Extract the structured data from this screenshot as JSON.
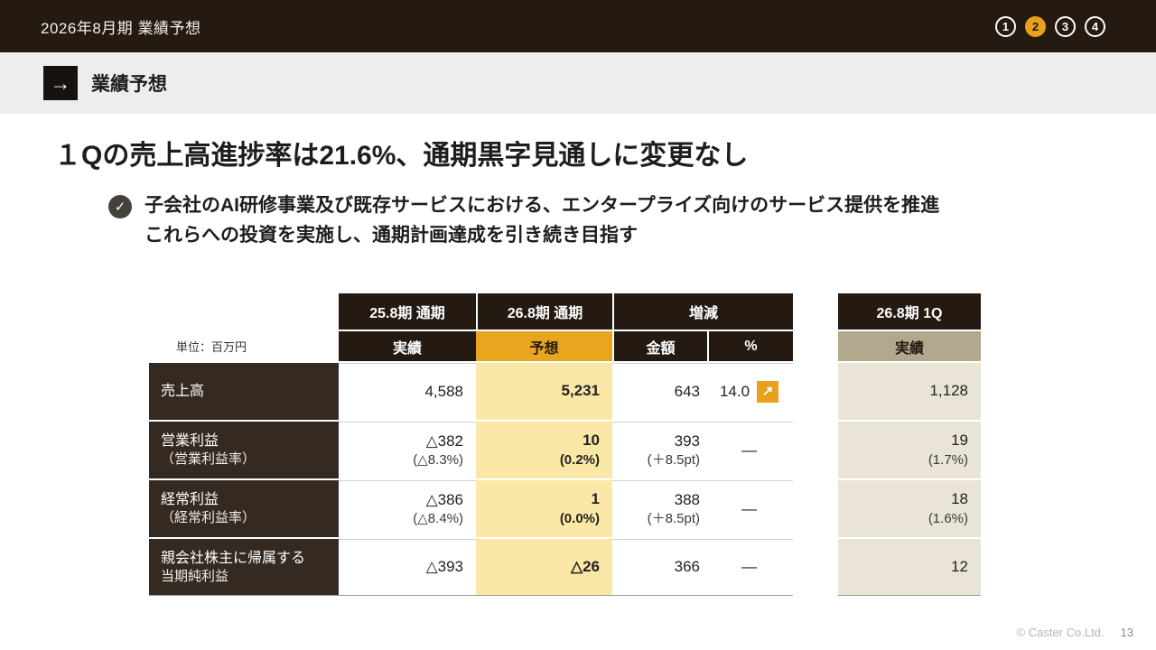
{
  "colors": {
    "bar_bg": "#241A12",
    "accent": "#E8A11B",
    "forecast_header_bg": "#E8A51E",
    "forecast_cell_bg": "#FBE8A6",
    "q1_header_bg": "#B2A88D",
    "q1_cell_bg": "#E9E4D6"
  },
  "topbar": {
    "title": "2026年8月期 業績予想",
    "pager": [
      {
        "label": "1",
        "active": false
      },
      {
        "label": "2",
        "active": true
      },
      {
        "label": "3",
        "active": false
      },
      {
        "label": "4",
        "active": false
      }
    ]
  },
  "section": {
    "title": "業績予想",
    "arrow": "→"
  },
  "headline": "１Qの売上高進捗率は21.6%、通期黒字見通しに変更なし",
  "bullet": {
    "check": "✓",
    "line1": "子会社のAI研修事業及び既存サービスにおける、エンタープライズ向けのサービス提供を推進",
    "line2": "これらへの投資を実施し、通期計画達成を引き続き目指す"
  },
  "table": {
    "unit": "単位：百万円",
    "groups": [
      "25.8期 通期",
      "26.8期 通期",
      "増減"
    ],
    "q1_group": "26.8期 1Q",
    "sub_headers": [
      "実績",
      "予想",
      "金額",
      "%"
    ],
    "q1_sub": "実績",
    "up_arrow": "↗",
    "rows": [
      {
        "label": "売上高",
        "label_sub": "",
        "actual": "4,588",
        "actual_sub": "",
        "forecast": "5,231",
        "forecast_sub": "",
        "amount": "643",
        "amount_sub": "",
        "pct": "14.0",
        "q1": "1,128",
        "q1_sub": ""
      },
      {
        "label": "営業利益",
        "label_sub": "（営業利益率）",
        "actual": "△382",
        "actual_sub": "(△8.3%)",
        "forecast": "10",
        "forecast_sub": "(0.2%)",
        "amount": "393",
        "amount_sub": "(＋8.5pt)",
        "pct": "—",
        "q1": "19",
        "q1_sub": "(1.7%)"
      },
      {
        "label": "経常利益",
        "label_sub": "（経常利益率）",
        "actual": "△386",
        "actual_sub": "(△8.4%)",
        "forecast": "1",
        "forecast_sub": "(0.0%)",
        "amount": "388",
        "amount_sub": "(＋8.5pt)",
        "pct": "—",
        "q1": "18",
        "q1_sub": "(1.6%)"
      },
      {
        "label": "親会社株主に帰属する",
        "label_sub": "当期純利益",
        "actual": "△393",
        "actual_sub": "",
        "forecast": "△26",
        "forecast_sub": "",
        "amount": "366",
        "amount_sub": "",
        "pct": "—",
        "q1": "12",
        "q1_sub": ""
      }
    ]
  },
  "footer": {
    "copyright": "© Caster Co.Ltd.",
    "page": "13"
  }
}
